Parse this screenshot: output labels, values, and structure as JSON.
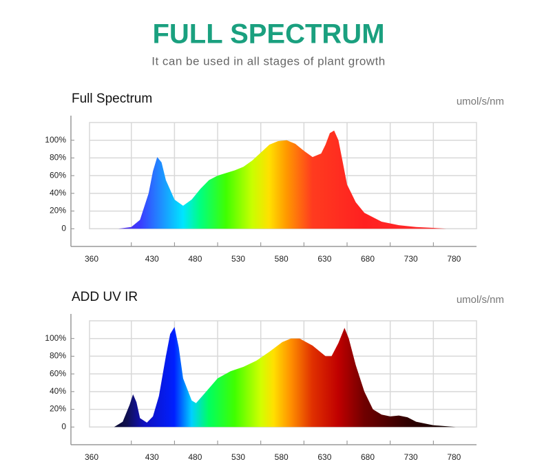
{
  "header": {
    "title": "FULL SPECTRUM",
    "subtitle": "It can be used in all stages of plant growth"
  },
  "chart_data": [
    {
      "type": "area",
      "title": "Full Spectrum",
      "y_unit": "umol/s/nm",
      "x": [
        415,
        430,
        440,
        450,
        455,
        460,
        465,
        470,
        480,
        490,
        500,
        510,
        520,
        530,
        540,
        550,
        560,
        570,
        580,
        590,
        600,
        610,
        620,
        630,
        640,
        650,
        655,
        660,
        665,
        670,
        675,
        680,
        690,
        700,
        720,
        740,
        760,
        780,
        795
      ],
      "values": [
        0,
        2,
        10,
        40,
        65,
        81,
        75,
        55,
        33,
        26,
        33,
        45,
        55,
        60,
        63,
        66,
        70,
        77,
        86,
        95,
        99,
        100,
        96,
        88,
        81,
        85,
        95,
        108,
        111,
        100,
        75,
        50,
        30,
        18,
        8,
        4,
        2,
        1,
        0
      ],
      "xlim": [
        360,
        830
      ],
      "ylim": [
        -20,
        120
      ],
      "xticks": [
        360,
        430,
        480,
        530,
        580,
        630,
        680,
        730,
        780
      ],
      "yticks": [
        0,
        {
          "value": 20,
          "label": "20%"
        },
        {
          "value": 40,
          "label": "40%"
        },
        {
          "value": 60,
          "label": "60%"
        },
        {
          "value": 80,
          "label": "80%"
        },
        {
          "value": 100,
          "label": "100%"
        }
      ],
      "grid": true,
      "gradient": "spectrum"
    },
    {
      "type": "area",
      "title": "ADD UV IR",
      "y_unit": "umol/s/nm",
      "x": [
        410,
        420,
        428,
        432,
        436,
        440,
        448,
        455,
        462,
        470,
        475,
        480,
        485,
        490,
        500,
        505,
        515,
        530,
        545,
        560,
        575,
        590,
        605,
        615,
        625,
        640,
        655,
        662,
        670,
        677,
        682,
        690,
        700,
        710,
        720,
        730,
        740,
        750,
        760,
        780,
        806
      ],
      "values": [
        0,
        6,
        25,
        37,
        28,
        10,
        5,
        12,
        35,
        80,
        105,
        113,
        90,
        55,
        30,
        27,
        38,
        55,
        63,
        68,
        75,
        85,
        96,
        100,
        100,
        92,
        80,
        80,
        95,
        112,
        100,
        70,
        40,
        20,
        14,
        12,
        13,
        11,
        6,
        2,
        0
      ],
      "xlim": [
        360,
        830
      ],
      "ylim": [
        -20,
        120
      ],
      "xticks": [
        360,
        430,
        480,
        530,
        580,
        630,
        680,
        730,
        780
      ],
      "yticks": [
        0,
        {
          "value": 20,
          "label": "20%"
        },
        {
          "value": 40,
          "label": "40%"
        },
        {
          "value": 60,
          "label": "60%"
        },
        {
          "value": 80,
          "label": "80%"
        },
        {
          "value": 100,
          "label": "100%"
        }
      ],
      "grid": true,
      "gradient": "uvir"
    }
  ]
}
